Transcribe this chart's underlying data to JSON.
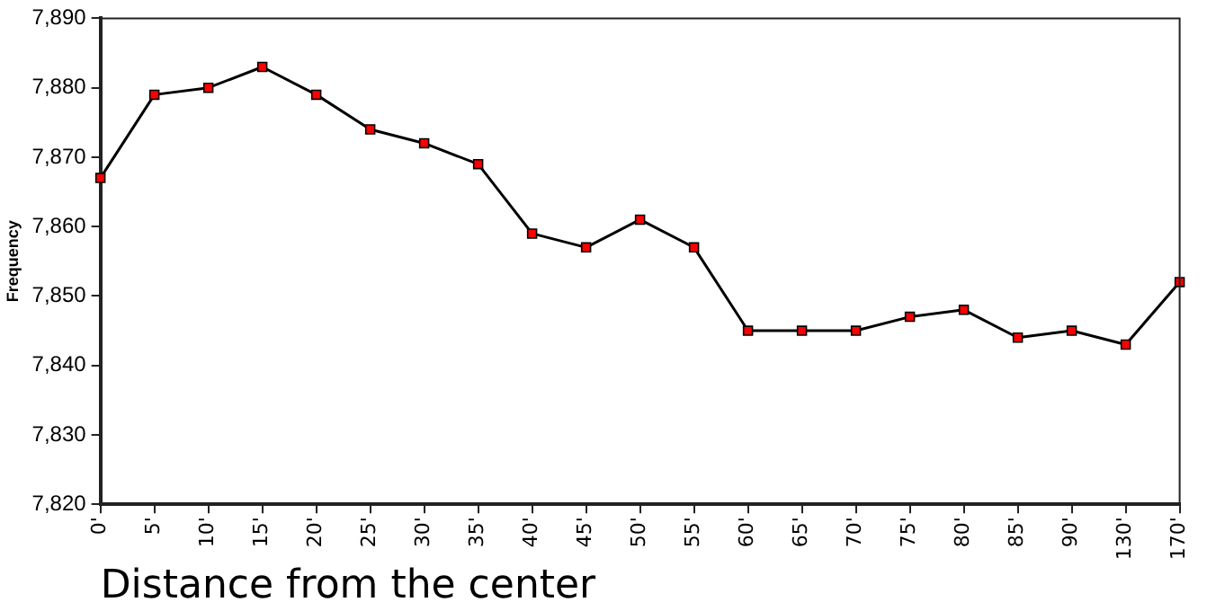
{
  "chart_data": {
    "type": "line",
    "xlabel": "Distance from the center",
    "ylabel": "Frequency",
    "categories": [
      "0'",
      "5'",
      "10'",
      "15'",
      "20'",
      "25'",
      "30'",
      "35'",
      "40'",
      "45'",
      "50'",
      "55'",
      "60'",
      "65'",
      "70'",
      "75'",
      "80'",
      "85'",
      "90'",
      "130'",
      "170'"
    ],
    "series": [
      {
        "color": "#ff0000",
        "values": [
          7867,
          7879,
          7880,
          7883,
          7879,
          7874,
          7872,
          7869,
          7859,
          7857,
          7861,
          7857,
          7845,
          7845,
          7845,
          7847,
          7848,
          7844,
          7845,
          7843,
          7852
        ]
      }
    ],
    "ylim": [
      7820,
      7890
    ],
    "yticks": [
      {
        "value": 7820,
        "label": "7,820"
      },
      {
        "value": 7830,
        "label": "7,830"
      },
      {
        "value": 7840,
        "label": "7,840"
      },
      {
        "value": 7850,
        "label": "7,850"
      },
      {
        "value": 7860,
        "label": "7,860"
      },
      {
        "value": 7870,
        "label": "7,870"
      },
      {
        "value": 7880,
        "label": "7,880"
      },
      {
        "value": 7890,
        "label": "7,890"
      }
    ],
    "grid": false,
    "legend": false,
    "marker": "square",
    "line_style": "solid"
  }
}
